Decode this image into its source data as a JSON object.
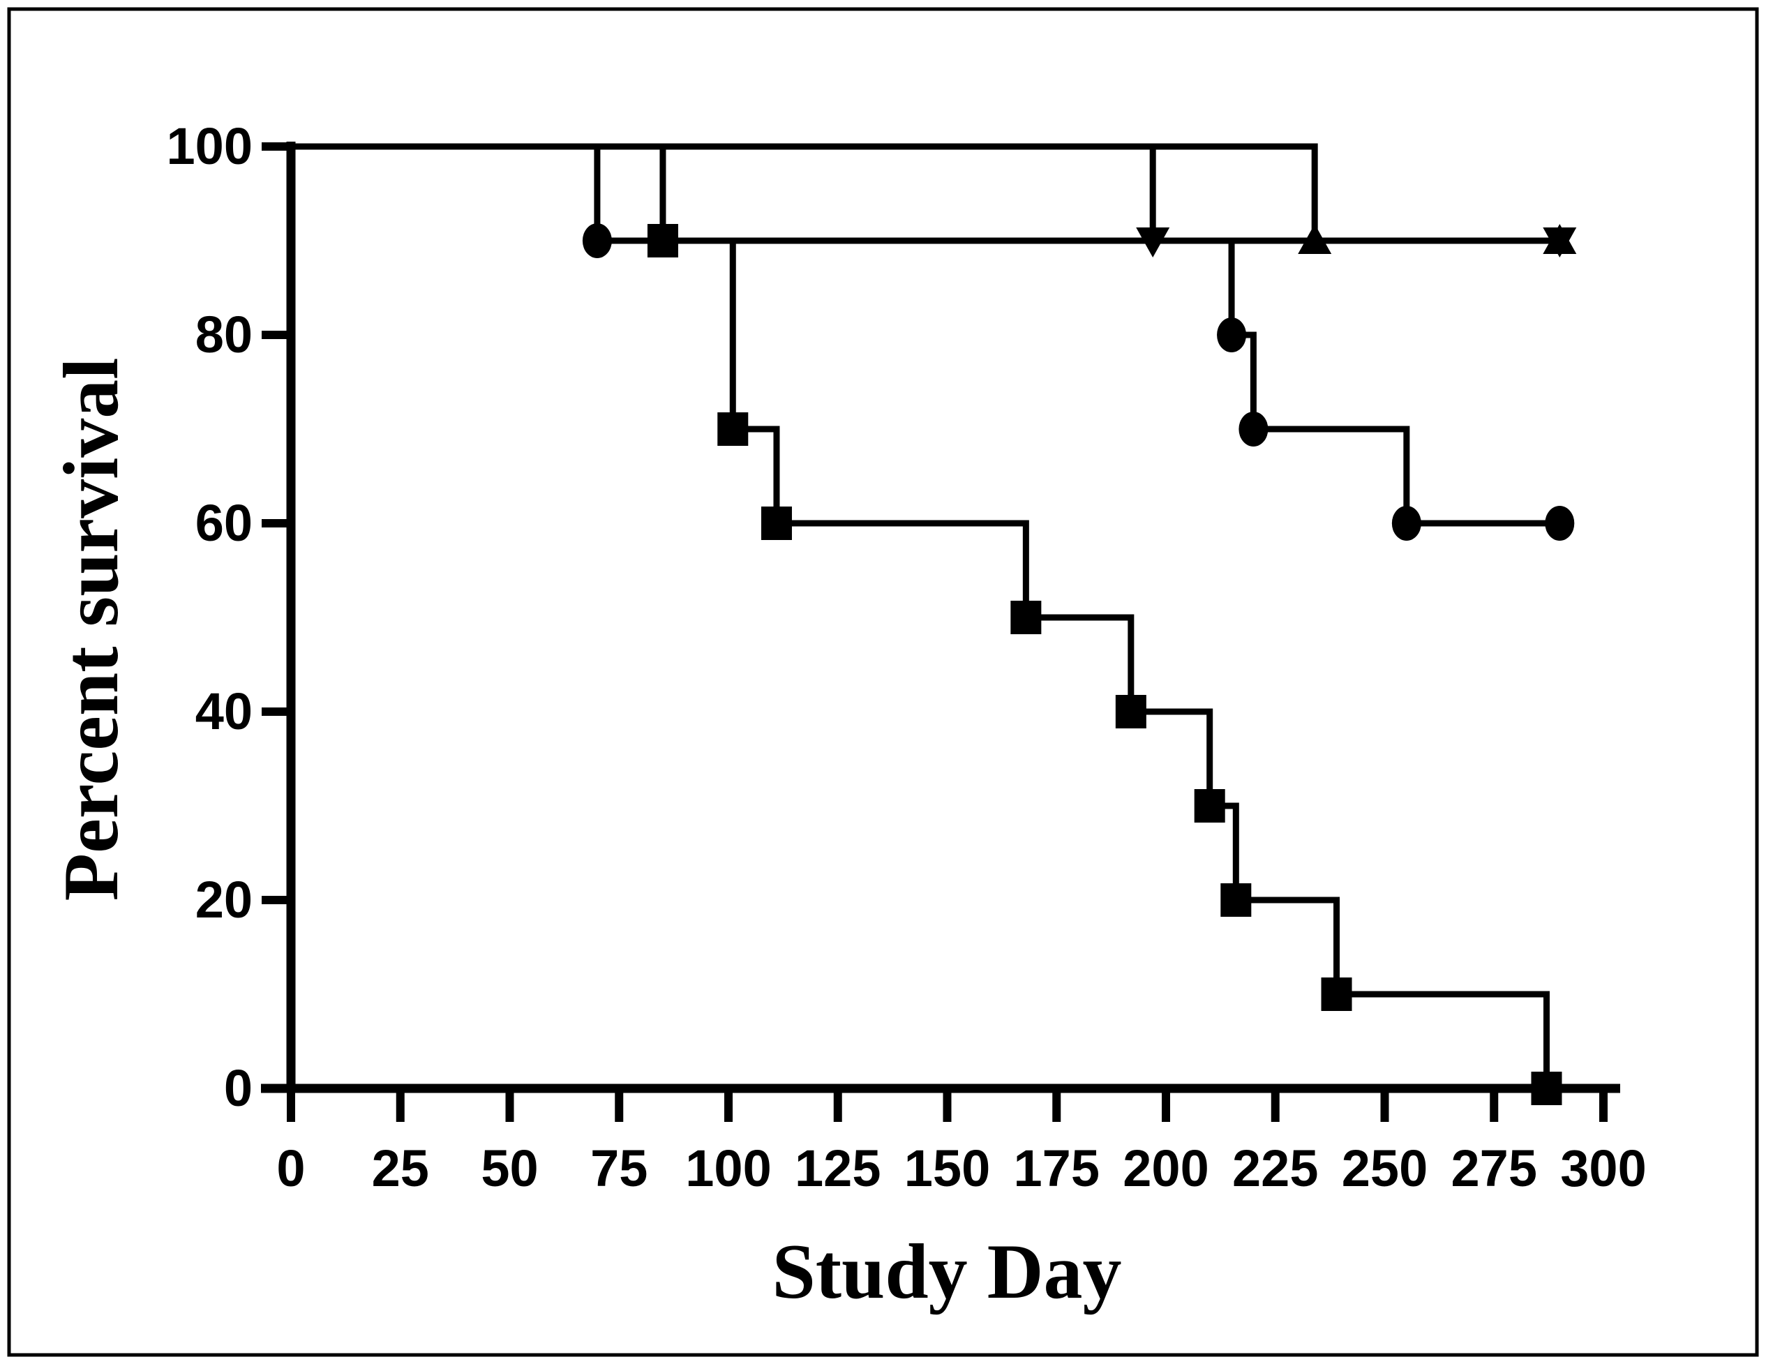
{
  "figure": {
    "background": "#ffffff",
    "ink_color": "#000000",
    "border_color": "#000000"
  },
  "chart_data": {
    "type": "line",
    "variant": "kaplan-meier-survival-steps",
    "title": "",
    "xlabel": "Study Day",
    "ylabel": "Percent survival",
    "xlim": [
      0,
      300
    ],
    "ylim": [
      0,
      100
    ],
    "x_ticks": [
      0,
      25,
      50,
      75,
      100,
      125,
      150,
      175,
      200,
      225,
      250,
      275,
      300
    ],
    "y_ticks": [
      0,
      20,
      40,
      60,
      80,
      100
    ],
    "grid": false,
    "legend_position": "none",
    "series": [
      {
        "name": "circle-group",
        "marker": "filled-circle",
        "color": "#000000",
        "start": [
          0,
          100
        ],
        "steps": [
          [
            70,
            90
          ],
          [
            215,
            80
          ],
          [
            220,
            70
          ],
          [
            255,
            60
          ]
        ],
        "end_day": 290,
        "end_marker": true,
        "final_value": 60
      },
      {
        "name": "square-group",
        "marker": "filled-square",
        "color": "#000000",
        "start": [
          0,
          100
        ],
        "steps": [
          [
            85,
            90
          ],
          [
            101,
            70
          ],
          [
            111,
            60
          ],
          [
            168,
            50
          ],
          [
            192,
            40
          ],
          [
            210,
            30
          ],
          [
            216,
            20
          ],
          [
            239,
            10
          ],
          [
            287,
            0
          ]
        ],
        "end_day": 287,
        "end_marker": false,
        "final_value": 0
      },
      {
        "name": "triangle-down-group",
        "marker": "filled-triangle-down",
        "color": "#000000",
        "start": [
          0,
          100
        ],
        "steps": [
          [
            197,
            90
          ]
        ],
        "end_day": 290,
        "end_marker": true,
        "final_value": 90
      },
      {
        "name": "triangle-up-group",
        "marker": "filled-triangle-up",
        "color": "#000000",
        "start": [
          0,
          100
        ],
        "steps": [
          [
            234,
            90
          ]
        ],
        "end_day": 290,
        "end_marker": true,
        "final_value": 90
      }
    ]
  }
}
